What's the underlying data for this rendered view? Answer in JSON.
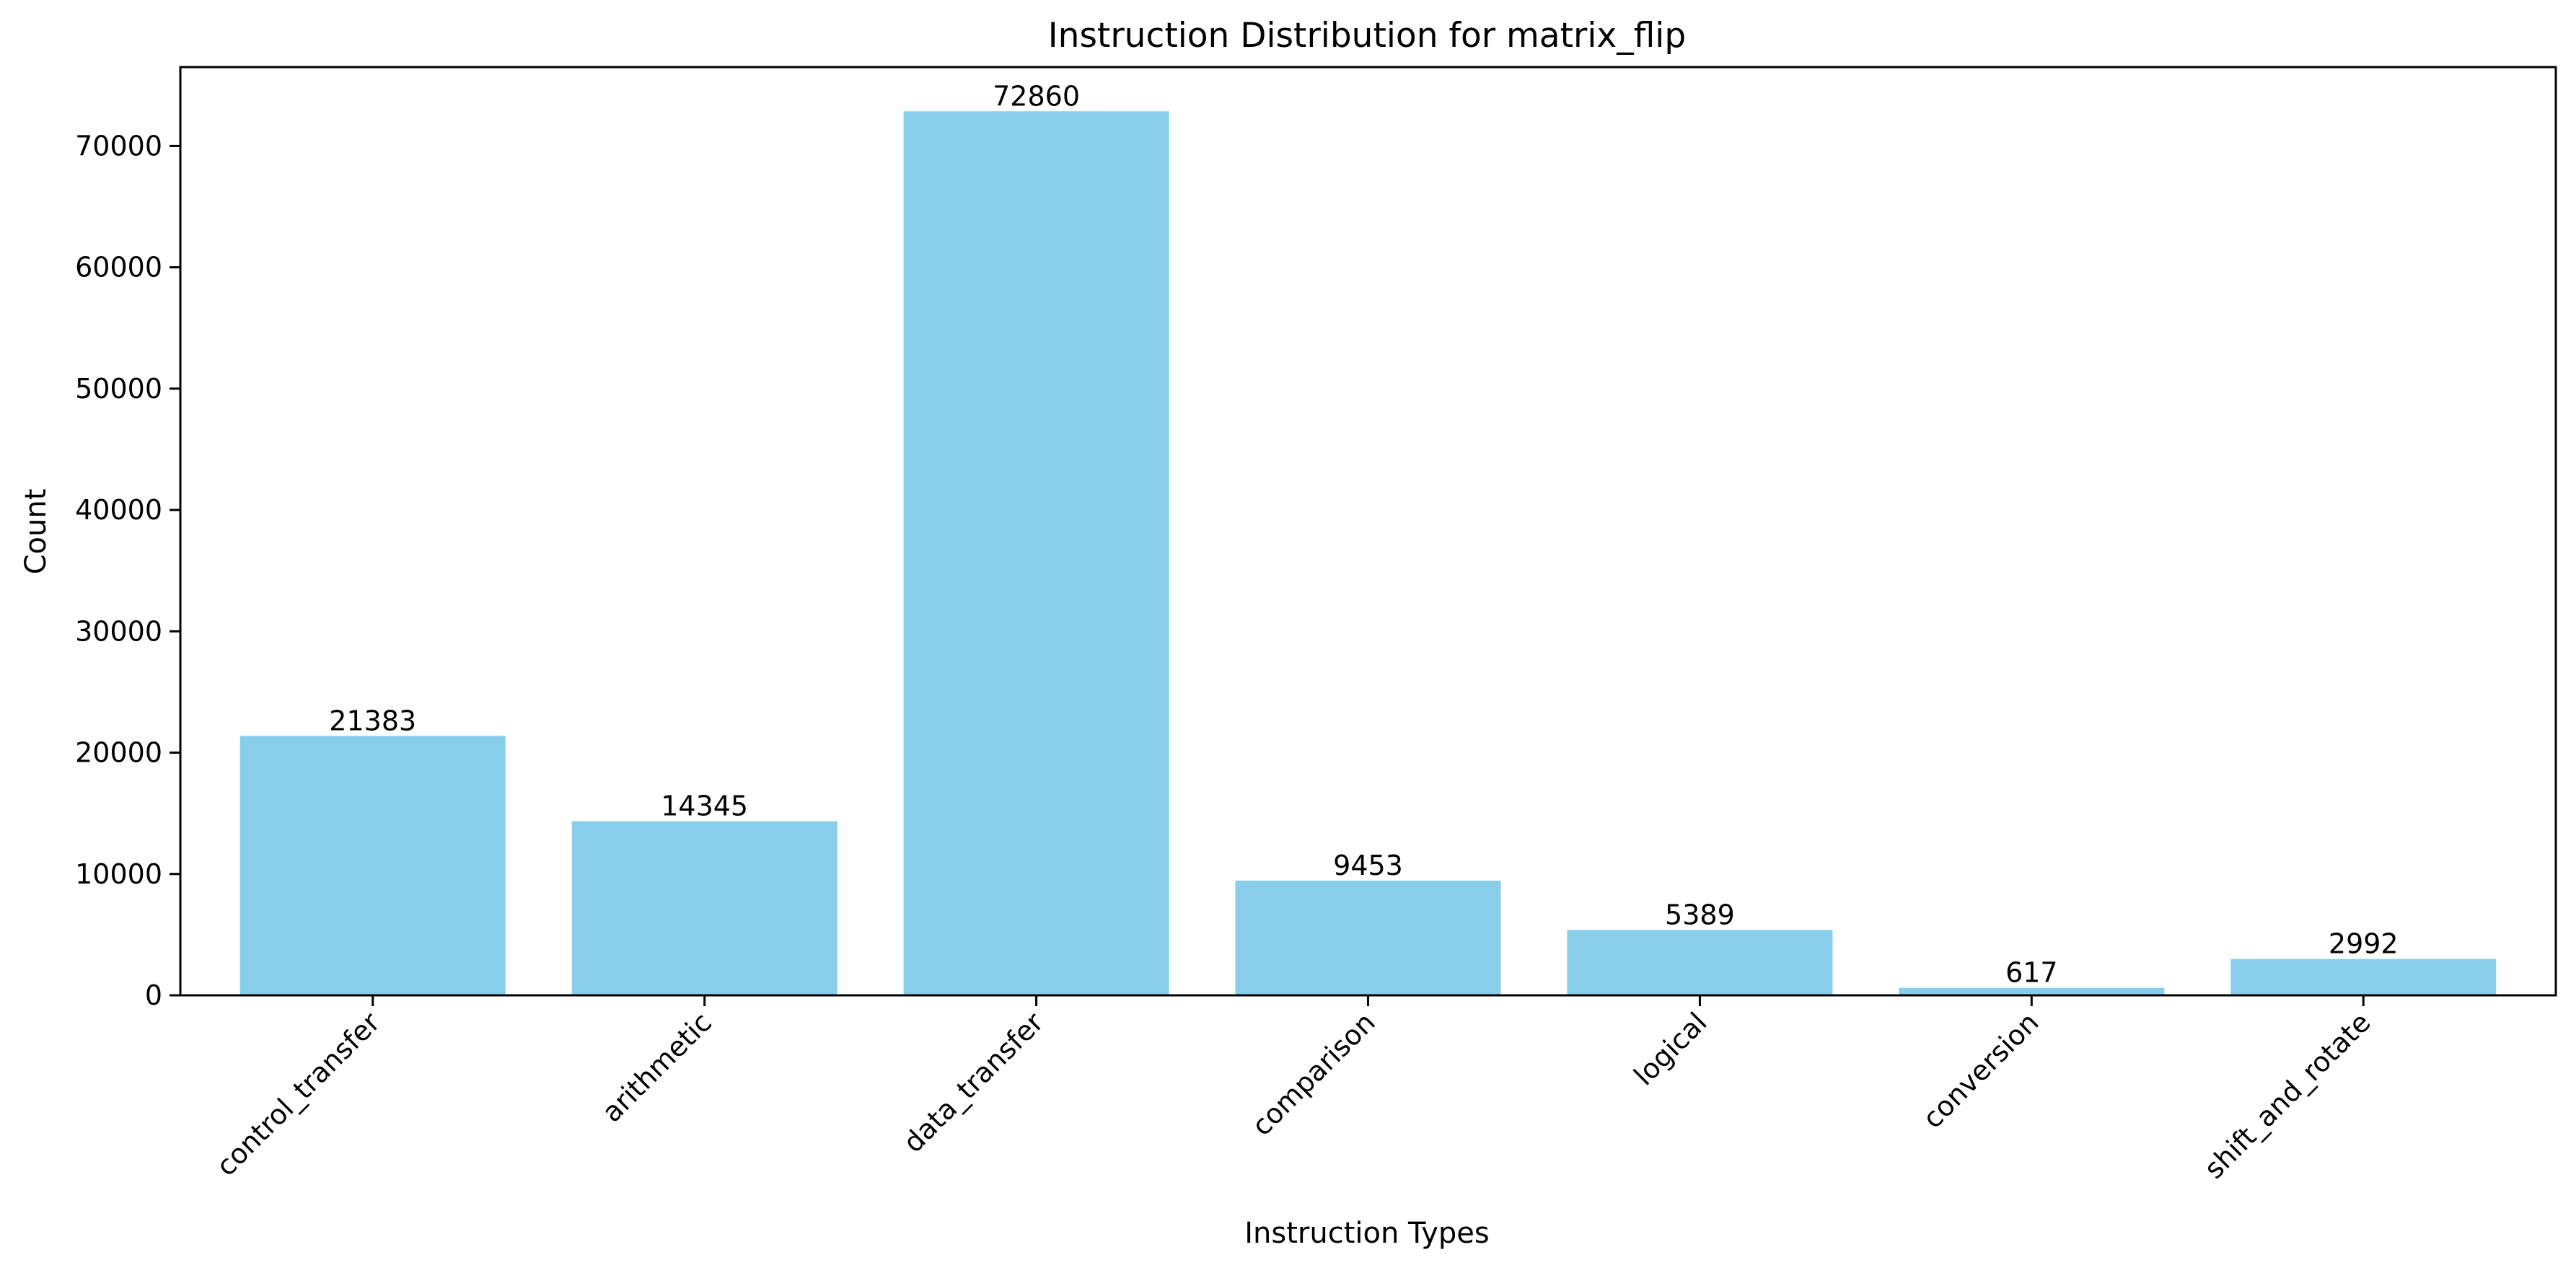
{
  "chart_data": {
    "type": "bar",
    "title": "Instruction Distribution for matrix_flip",
    "xlabel": "Instruction Types",
    "ylabel": "Count",
    "categories": [
      "control_transfer",
      "arithmetic",
      "data_transfer",
      "comparison",
      "logical",
      "conversion",
      "shift_and_rotate"
    ],
    "values": [
      21383,
      14345,
      72860,
      9453,
      5389,
      617,
      2992
    ],
    "value_labels": [
      "21383",
      "14345",
      "72860",
      "9453",
      "5389",
      "617",
      "2992"
    ],
    "yticks": [
      0,
      10000,
      20000,
      30000,
      40000,
      50000,
      60000,
      70000
    ],
    "ylim": [
      0,
      76503
    ],
    "grid": false,
    "legend": "none",
    "bar_color": "#87CEEB"
  }
}
